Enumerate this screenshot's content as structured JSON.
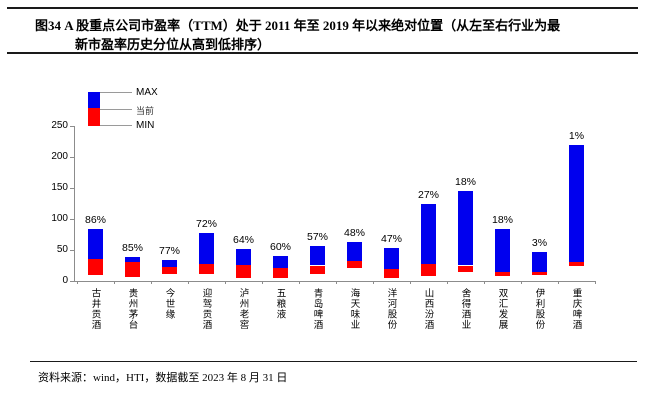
{
  "title": {
    "line1": "图34 A 股重点公司市盈率（TTM）处于 2011 年至 2019 年以来绝对位置（从左至右行业为最",
    "line2": "新市盈率历史分位从高到低排序）"
  },
  "legend": {
    "max_label": "MAX",
    "current_label": "当前",
    "min_label": "MIN"
  },
  "footer": {
    "source_text": "资料来源：wind，HTI，数据截至 2023 年 8 月 31 日"
  },
  "colors": {
    "max_range_bar": "#0000ee",
    "current_range_bar": "#ff0000",
    "axis": "#8c8c8c"
  },
  "chart_data": {
    "type": "bar",
    "subtype": "floating-range-stacked (red = MIN→当前, blue = 当前→MAX)",
    "title": "A股重点公司市盈率（TTM）历史区间与当前位置",
    "xlabel": "",
    "ylabel": "",
    "ylim": [
      0,
      250
    ],
    "yticks": [
      0,
      50,
      100,
      150,
      200,
      250
    ],
    "grid": false,
    "legend_position": "top-left",
    "categories": [
      "古井贡酒",
      "贵州茅台",
      "今世缘",
      "迎驾贡酒",
      "泸州老窖",
      "五粮液",
      "青岛啤酒",
      "海天味业",
      "洋河股份",
      "山西汾酒",
      "舍得酒业",
      "双汇发展",
      "伊利股份",
      "重庆啤酒"
    ],
    "series": [
      {
        "name": "MIN",
        "values": [
          10,
          7,
          12,
          12,
          5,
          5,
          11,
          21,
          5,
          8,
          14,
          8,
          10,
          24
        ]
      },
      {
        "name": "当前",
        "values": [
          35,
          30,
          22,
          28,
          26,
          21,
          25,
          33,
          19,
          28,
          25,
          14,
          15,
          31
        ]
      },
      {
        "name": "MAX",
        "values": [
          84,
          39,
          34,
          77,
          52,
          40,
          56,
          63,
          54,
          125,
          145,
          84,
          46,
          220
        ]
      }
    ],
    "point_labels": [
      "86%",
      "85%",
      "77%",
      "72%",
      "64%",
      "60%",
      "57%",
      "48%",
      "47%",
      "27%",
      "18%",
      "18%",
      "3%",
      "1%"
    ]
  }
}
